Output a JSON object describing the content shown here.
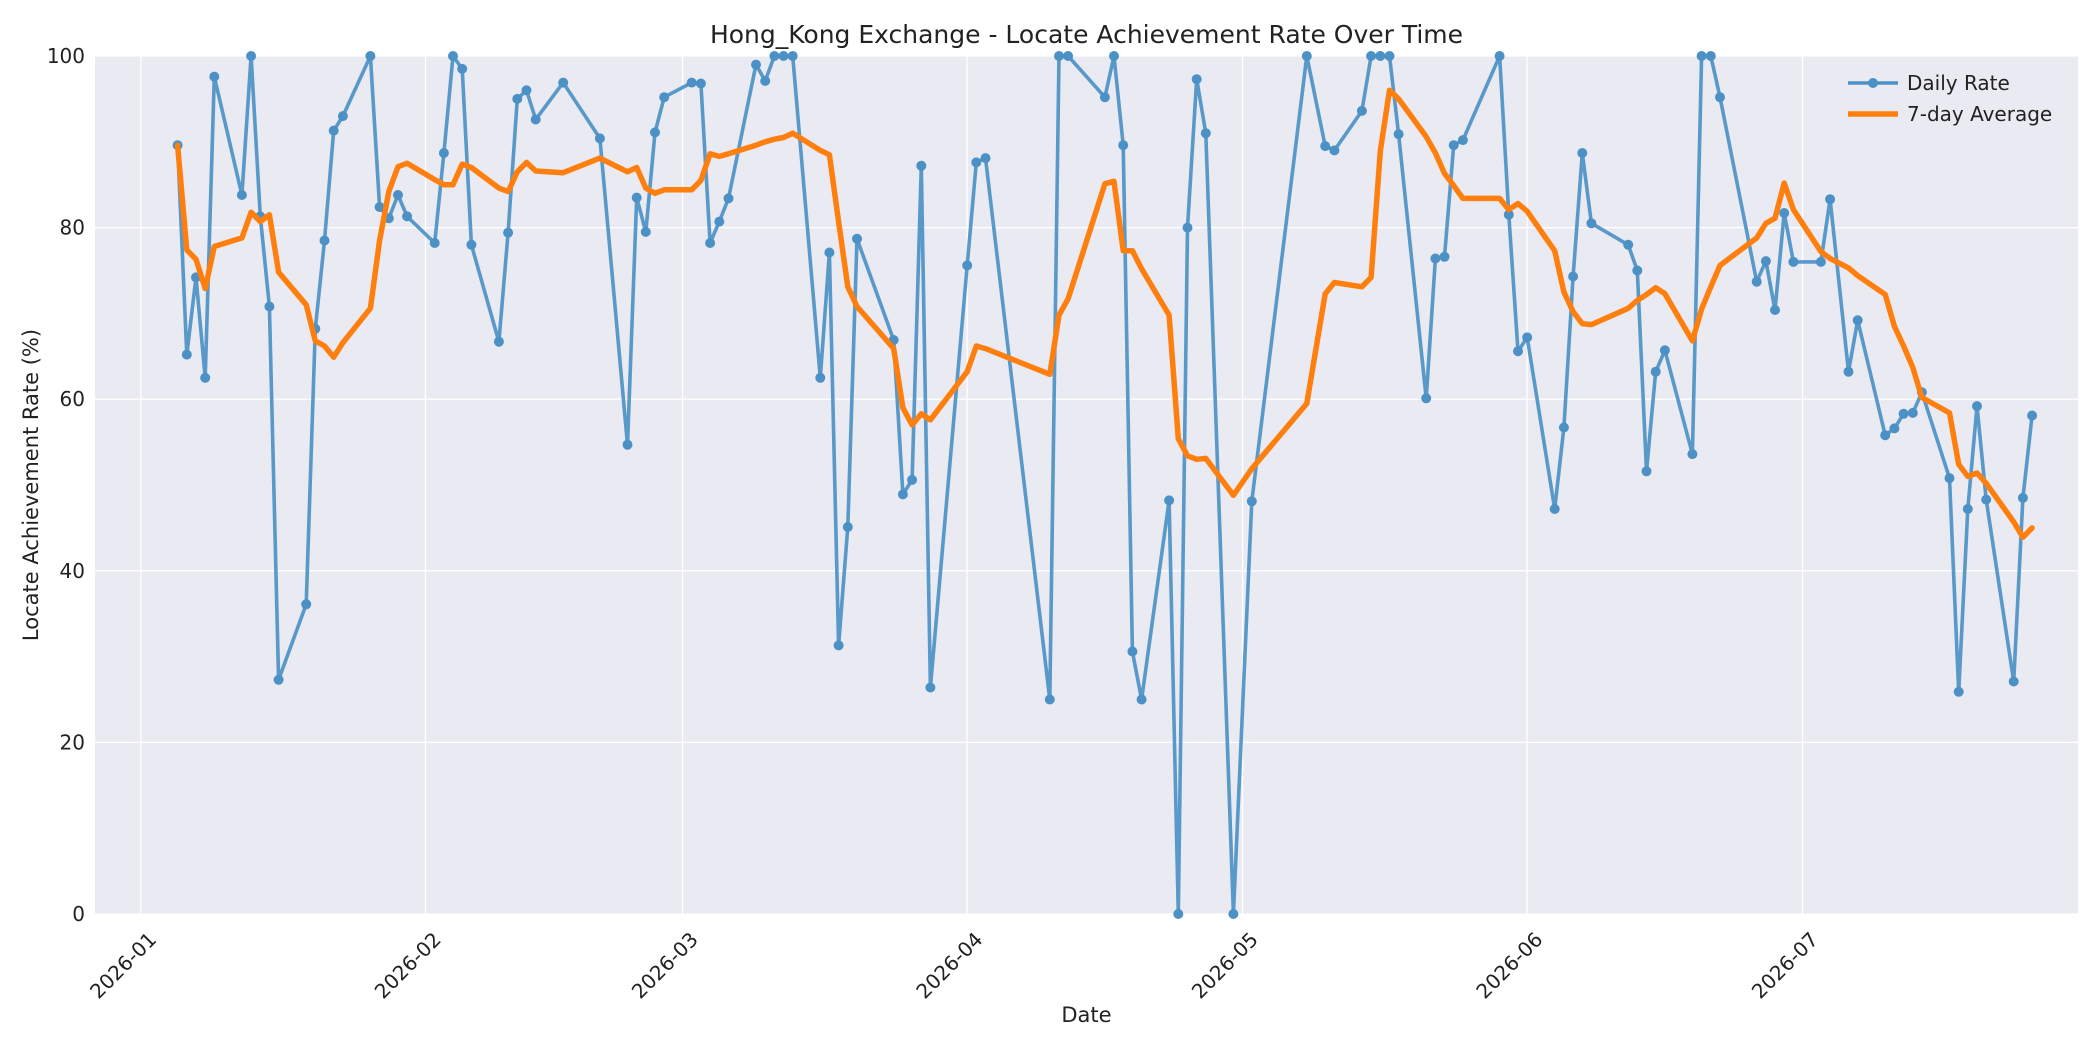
{
  "chart_data": {
    "type": "line",
    "title": "Hong_Kong Exchange - Locate Achievement Rate Over Time",
    "xlabel": "Date",
    "ylabel": "Locate Achievement Rate (%)",
    "x_tick_labels": [
      "2026-01",
      "2026-02",
      "2026-03",
      "2026-04",
      "2026-05",
      "2026-06",
      "2026-07"
    ],
    "y_tick_labels": [
      "0",
      "20",
      "40",
      "60",
      "80",
      "100"
    ],
    "xlim": [
      "2025-12-27",
      "2026-07-31"
    ],
    "ylim": [
      0,
      100
    ],
    "grid": true,
    "legend_position": "top-right",
    "colors": {
      "daily": "#4c91c5",
      "average": "#ff7f0e",
      "plot_background": "#eaeaf2",
      "grid": "#ffffff"
    },
    "series": [
      {
        "name": "Daily Rate",
        "style": "line-markers",
        "points": [
          [
            "2026-01-05",
            89.6
          ],
          [
            "2026-01-06",
            65.2
          ],
          [
            "2026-01-07",
            74.2
          ],
          [
            "2026-01-08",
            62.5
          ],
          [
            "2026-01-09",
            97.6
          ],
          [
            "2026-01-12",
            83.8
          ],
          [
            "2026-01-13",
            100
          ],
          [
            "2026-01-14",
            81.3
          ],
          [
            "2026-01-15",
            70.8
          ],
          [
            "2026-01-16",
            27.3
          ],
          [
            "2026-01-19",
            36.1
          ],
          [
            "2026-01-20",
            68.2
          ],
          [
            "2026-01-21",
            78.5
          ],
          [
            "2026-01-22",
            91.3
          ],
          [
            "2026-01-23",
            93.0
          ],
          [
            "2026-01-26",
            100
          ],
          [
            "2026-01-27",
            82.4
          ],
          [
            "2026-01-28",
            81.1
          ],
          [
            "2026-01-29",
            83.8
          ],
          [
            "2026-01-30",
            81.3
          ],
          [
            "2026-02-02",
            78.2
          ],
          [
            "2026-02-03",
            88.7
          ],
          [
            "2026-02-04",
            100
          ],
          [
            "2026-02-05",
            98.5
          ],
          [
            "2026-02-06",
            78.0
          ],
          [
            "2026-02-09",
            66.7
          ],
          [
            "2026-02-10",
            79.4
          ],
          [
            "2026-02-11",
            95.0
          ],
          [
            "2026-02-12",
            96.0
          ],
          [
            "2026-02-13",
            92.6
          ],
          [
            "2026-02-16",
            96.9
          ],
          [
            "2026-02-20",
            90.4
          ],
          [
            "2026-02-23",
            54.7
          ],
          [
            "2026-02-24",
            83.5
          ],
          [
            "2026-02-25",
            79.5
          ],
          [
            "2026-02-26",
            91.1
          ],
          [
            "2026-02-27",
            95.2
          ],
          [
            "2026-03-02",
            96.9
          ],
          [
            "2026-03-03",
            96.8
          ],
          [
            "2026-03-04",
            78.2
          ],
          [
            "2026-03-05",
            80.7
          ],
          [
            "2026-03-06",
            83.4
          ],
          [
            "2026-03-09",
            99.0
          ],
          [
            "2026-03-10",
            97.1
          ],
          [
            "2026-03-11",
            100
          ],
          [
            "2026-03-12",
            100
          ],
          [
            "2026-03-13",
            100
          ],
          [
            "2026-03-16",
            62.5
          ],
          [
            "2026-03-17",
            77.1
          ],
          [
            "2026-03-18",
            31.3
          ],
          [
            "2026-03-19",
            45.1
          ],
          [
            "2026-03-20",
            78.7
          ],
          [
            "2026-03-24",
            66.9
          ],
          [
            "2026-03-25",
            48.9
          ],
          [
            "2026-03-26",
            50.6
          ],
          [
            "2026-03-27",
            87.2
          ],
          [
            "2026-03-28",
            26.4
          ],
          [
            "2026-04-01",
            75.6
          ],
          [
            "2026-04-02",
            87.6
          ],
          [
            "2026-04-03",
            88.1
          ],
          [
            "2026-04-10",
            25.0
          ],
          [
            "2026-04-11",
            100
          ],
          [
            "2026-04-12",
            100
          ],
          [
            "2026-04-16",
            95.2
          ],
          [
            "2026-04-17",
            100
          ],
          [
            "2026-04-18",
            89.6
          ],
          [
            "2026-04-19",
            30.6
          ],
          [
            "2026-04-20",
            25.0
          ],
          [
            "2026-04-23",
            48.2
          ],
          [
            "2026-04-24",
            0
          ],
          [
            "2026-04-25",
            80.0
          ],
          [
            "2026-04-26",
            97.3
          ],
          [
            "2026-04-27",
            91.0
          ],
          [
            "2026-04-30",
            0
          ],
          [
            "2026-05-02",
            48.1
          ],
          [
            "2026-05-08",
            100
          ],
          [
            "2026-05-10",
            89.5
          ],
          [
            "2026-05-11",
            89.0
          ],
          [
            "2026-05-14",
            93.6
          ],
          [
            "2026-05-15",
            100
          ],
          [
            "2026-05-16",
            100
          ],
          [
            "2026-05-17",
            100
          ],
          [
            "2026-05-18",
            90.9
          ],
          [
            "2026-05-21",
            60.1
          ],
          [
            "2026-05-22",
            76.4
          ],
          [
            "2026-05-23",
            76.6
          ],
          [
            "2026-05-24",
            89.6
          ],
          [
            "2026-05-25",
            90.2
          ],
          [
            "2026-05-29",
            100
          ],
          [
            "2026-05-30",
            81.5
          ],
          [
            "2026-05-31",
            65.6
          ],
          [
            "2026-06-01",
            67.2
          ],
          [
            "2026-06-04",
            47.2
          ],
          [
            "2026-06-05",
            56.7
          ],
          [
            "2026-06-06",
            74.3
          ],
          [
            "2026-06-07",
            88.7
          ],
          [
            "2026-06-08",
            80.5
          ],
          [
            "2026-06-12",
            78.0
          ],
          [
            "2026-06-13",
            75.0
          ],
          [
            "2026-06-14",
            51.6
          ],
          [
            "2026-06-15",
            63.2
          ],
          [
            "2026-06-16",
            65.7
          ],
          [
            "2026-06-19",
            53.6
          ],
          [
            "2026-06-20",
            100
          ],
          [
            "2026-06-21",
            100
          ],
          [
            "2026-06-22",
            95.2
          ],
          [
            "2026-06-26",
            73.7
          ],
          [
            "2026-06-27",
            76.1
          ],
          [
            "2026-06-28",
            70.4
          ],
          [
            "2026-06-29",
            81.7
          ],
          [
            "2026-06-30",
            76.0
          ],
          [
            "2026-07-03",
            76.0
          ],
          [
            "2026-07-04",
            83.3
          ],
          [
            "2026-07-06",
            63.2
          ],
          [
            "2026-07-07",
            69.2
          ],
          [
            "2026-07-10",
            55.8
          ],
          [
            "2026-07-11",
            56.6
          ],
          [
            "2026-07-12",
            58.3
          ],
          [
            "2026-07-13",
            58.4
          ],
          [
            "2026-07-14",
            60.8
          ],
          [
            "2026-07-17",
            50.8
          ],
          [
            "2026-07-18",
            25.9
          ],
          [
            "2026-07-19",
            47.2
          ],
          [
            "2026-07-20",
            59.2
          ],
          [
            "2026-07-21",
            48.3
          ],
          [
            "2026-07-24",
            27.1
          ],
          [
            "2026-07-25",
            48.5
          ],
          [
            "2026-07-26",
            58.1
          ]
        ]
      },
      {
        "name": "7-day Average",
        "style": "line",
        "points": [
          [
            "2026-01-05",
            89.6
          ],
          [
            "2026-01-06",
            77.4
          ],
          [
            "2026-01-07",
            76.3
          ],
          [
            "2026-01-08",
            72.9
          ],
          [
            "2026-01-09",
            77.8
          ],
          [
            "2026-01-12",
            78.8
          ],
          [
            "2026-01-13",
            81.8
          ],
          [
            "2026-01-14",
            80.7
          ],
          [
            "2026-01-15",
            81.5
          ],
          [
            "2026-01-16",
            74.8
          ],
          [
            "2026-01-19",
            71.0
          ],
          [
            "2026-01-20",
            66.8
          ],
          [
            "2026-01-21",
            66.2
          ],
          [
            "2026-01-22",
            64.9
          ],
          [
            "2026-01-23",
            66.6
          ],
          [
            "2026-01-26",
            70.6
          ],
          [
            "2026-01-27",
            78.5
          ],
          [
            "2026-01-28",
            84.2
          ],
          [
            "2026-01-29",
            87.1
          ],
          [
            "2026-01-30",
            87.5
          ],
          [
            "2026-02-02",
            85.6
          ],
          [
            "2026-02-03",
            85.0
          ],
          [
            "2026-02-04",
            85.0
          ],
          [
            "2026-02-05",
            87.4
          ],
          [
            "2026-02-06",
            87.0
          ],
          [
            "2026-02-09",
            84.6
          ],
          [
            "2026-02-10",
            84.2
          ],
          [
            "2026-02-11",
            86.5
          ],
          [
            "2026-02-12",
            87.6
          ],
          [
            "2026-02-13",
            86.6
          ],
          [
            "2026-02-16",
            86.4
          ],
          [
            "2026-02-20",
            88.1
          ],
          [
            "2026-02-23",
            86.5
          ],
          [
            "2026-02-24",
            87.0
          ],
          [
            "2026-02-25",
            84.6
          ],
          [
            "2026-02-26",
            84.0
          ],
          [
            "2026-02-27",
            84.4
          ],
          [
            "2026-03-02",
            84.4
          ],
          [
            "2026-03-03",
            85.5
          ],
          [
            "2026-03-04",
            88.6
          ],
          [
            "2026-03-05",
            88.3
          ],
          [
            "2026-03-06",
            88.6
          ],
          [
            "2026-03-09",
            89.6
          ],
          [
            "2026-03-10",
            90.0
          ],
          [
            "2026-03-11",
            90.3
          ],
          [
            "2026-03-12",
            90.5
          ],
          [
            "2026-03-13",
            91.0
          ],
          [
            "2026-03-16",
            89.0
          ],
          [
            "2026-03-17",
            88.5
          ],
          [
            "2026-03-18",
            80.7
          ],
          [
            "2026-03-19",
            73.1
          ],
          [
            "2026-03-20",
            70.8
          ],
          [
            "2026-03-24",
            65.9
          ],
          [
            "2026-03-25",
            59.0
          ],
          [
            "2026-03-26",
            57.0
          ],
          [
            "2026-03-27",
            58.3
          ],
          [
            "2026-03-28",
            57.6
          ],
          [
            "2026-04-01",
            63.2
          ],
          [
            "2026-04-02",
            66.2
          ],
          [
            "2026-04-03",
            65.9
          ],
          [
            "2026-04-10",
            62.9
          ],
          [
            "2026-04-11",
            69.8
          ],
          [
            "2026-04-12",
            71.7
          ],
          [
            "2026-04-16",
            85.1
          ],
          [
            "2026-04-17",
            85.4
          ],
          [
            "2026-04-18",
            77.3
          ],
          [
            "2026-04-19",
            77.3
          ],
          [
            "2026-04-20",
            75.2
          ],
          [
            "2026-04-23",
            69.8
          ],
          [
            "2026-04-24",
            55.4
          ],
          [
            "2026-04-25",
            53.4
          ],
          [
            "2026-04-26",
            53.0
          ],
          [
            "2026-04-27",
            53.1
          ],
          [
            "2026-04-30",
            48.8
          ],
          [
            "2026-05-02",
            51.9
          ],
          [
            "2026-05-08",
            59.5
          ],
          [
            "2026-05-10",
            72.3
          ],
          [
            "2026-05-11",
            73.6
          ],
          [
            "2026-05-14",
            73.1
          ],
          [
            "2026-05-15",
            74.2
          ],
          [
            "2026-05-16",
            88.9
          ],
          [
            "2026-05-17",
            96.0
          ],
          [
            "2026-05-18",
            95.0
          ],
          [
            "2026-05-21",
            90.6
          ],
          [
            "2026-05-22",
            88.7
          ],
          [
            "2026-05-23",
            86.3
          ],
          [
            "2026-05-24",
            84.9
          ],
          [
            "2026-05-25",
            83.4
          ],
          [
            "2026-05-29",
            83.4
          ],
          [
            "2026-05-30",
            82.1
          ],
          [
            "2026-05-31",
            82.8
          ],
          [
            "2026-06-01",
            81.9
          ],
          [
            "2026-06-04",
            77.3
          ],
          [
            "2026-06-05",
            72.5
          ],
          [
            "2026-06-06",
            70.2
          ],
          [
            "2026-06-07",
            68.8
          ],
          [
            "2026-06-08",
            68.7
          ],
          [
            "2026-06-12",
            70.6
          ],
          [
            "2026-06-13",
            71.5
          ],
          [
            "2026-06-14",
            72.2
          ],
          [
            "2026-06-15",
            73.0
          ],
          [
            "2026-06-16",
            72.3
          ],
          [
            "2026-06-19",
            66.8
          ],
          [
            "2026-06-20",
            70.5
          ],
          [
            "2026-06-21",
            73.1
          ],
          [
            "2026-06-22",
            75.6
          ],
          [
            "2026-06-26",
            78.8
          ],
          [
            "2026-06-27",
            80.5
          ],
          [
            "2026-06-28",
            81.1
          ],
          [
            "2026-06-29",
            85.2
          ],
          [
            "2026-06-30",
            82.1
          ],
          [
            "2026-07-03",
            77.2
          ],
          [
            "2026-07-04",
            76.4
          ],
          [
            "2026-07-06",
            75.3
          ],
          [
            "2026-07-07",
            74.4
          ],
          [
            "2026-07-10",
            72.2
          ],
          [
            "2026-07-11",
            68.5
          ],
          [
            "2026-07-12",
            66.2
          ],
          [
            "2026-07-13",
            63.7
          ],
          [
            "2026-07-14",
            60.2
          ],
          [
            "2026-07-17",
            58.4
          ],
          [
            "2026-07-18",
            52.4
          ],
          [
            "2026-07-19",
            51.0
          ],
          [
            "2026-07-20",
            51.4
          ],
          [
            "2026-07-21",
            50.2
          ],
          [
            "2026-07-24",
            45.7
          ],
          [
            "2026-07-25",
            43.9
          ],
          [
            "2026-07-26",
            45.0
          ]
        ]
      }
    ]
  }
}
